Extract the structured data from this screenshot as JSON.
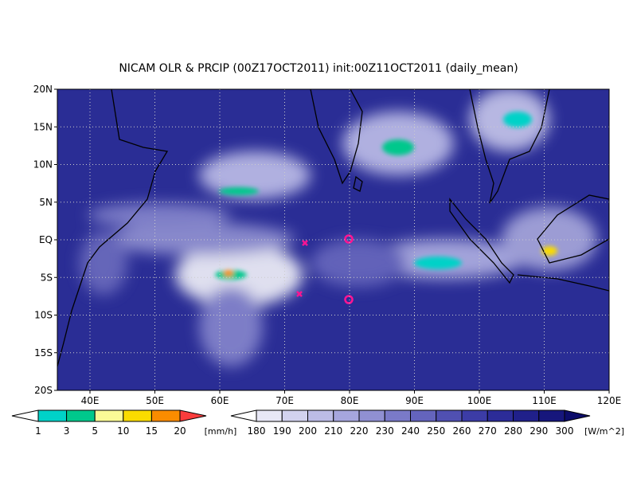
{
  "title": "NICAM OLR & PRCIP (00Z17OCT2011) init:00Z11OCT2011 (daily_mean)",
  "lat_labels": [
    "20N",
    "15N",
    "10N",
    "5N",
    "EQ",
    "5S",
    "10S",
    "15S",
    "20S"
  ],
  "lon_labels": [
    "40E",
    "50E",
    "60E",
    "70E",
    "80E",
    "90E",
    "100E",
    "110E",
    "120E"
  ],
  "precip_legend": {
    "labels": [
      "1",
      "3",
      "5",
      "10",
      "15",
      "20"
    ],
    "unit": "[mm/h]",
    "colors": [
      "#ffffff",
      "#00d2c8",
      "#00c88c",
      "#fafa96",
      "#fadc00",
      "#fa8c00",
      "#fa3c3c"
    ]
  },
  "olr_legend": {
    "labels": [
      "180",
      "190",
      "200",
      "210",
      "220",
      "230",
      "240",
      "250",
      "260",
      "270",
      "280",
      "290",
      "300"
    ],
    "unit": "[W/m^2]",
    "colors": [
      "#ffffff",
      "#e8e8f6",
      "#d2d2ee",
      "#bcbce6",
      "#a6a6dd",
      "#9090d2",
      "#7a7ac8",
      "#6464bd",
      "#5050b2",
      "#3c3ca6",
      "#2c2c98",
      "#20208a",
      "#16167c",
      "#0c0c6a"
    ]
  }
}
